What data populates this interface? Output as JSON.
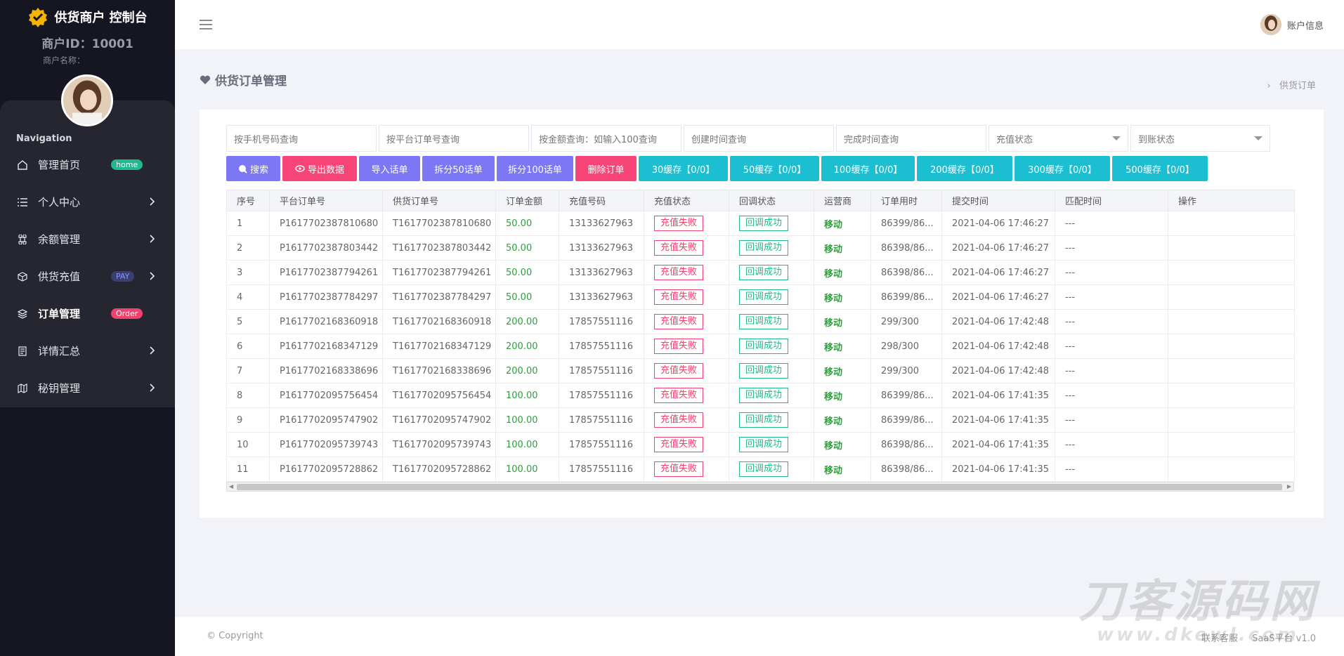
{
  "sidebar": {
    "brand_title": "供货商户 控制台",
    "merchant_id": "商户ID：10001",
    "merchant_name": "商户名称：",
    "nav_heading": "Navigation",
    "items": [
      {
        "label": "管理首页",
        "icon": "home-icon",
        "badge": "home"
      },
      {
        "label": "个人中心",
        "icon": "list-icon"
      },
      {
        "label": "余额管理",
        "icon": "command-icon"
      },
      {
        "label": "供货充值",
        "icon": "box-icon",
        "badge": "PAY"
      },
      {
        "label": "订单管理",
        "icon": "layers-icon",
        "badge": "Order"
      },
      {
        "label": "详情汇总",
        "icon": "file-icon"
      },
      {
        "label": "秘钥管理",
        "icon": "map-icon"
      }
    ]
  },
  "header": {
    "account_label": "账户信息"
  },
  "page": {
    "title": "供货订单管理",
    "breadcrumb": "供货订单"
  },
  "filters": {
    "phone_placeholder": "按手机号码查询",
    "platform_order_placeholder": "按平台订单号查询",
    "amount_placeholder": "按金额查询：如输入100查询",
    "created_placeholder": "创建时间查询",
    "finished_placeholder": "完成时间查询",
    "recharge_status": "充值状态",
    "arrival_status": "到账状态"
  },
  "buttons": {
    "search": "搜索",
    "export": "导出数据",
    "import": "导入话单",
    "split50": "拆分50话单",
    "split100": "拆分100话单",
    "delete": "删除订单",
    "cache": [
      "30缓存【0/0】",
      "50缓存【0/0】",
      "100缓存【0/0】",
      "200缓存【0/0】",
      "300缓存【0/0】",
      "500缓存【0/0】"
    ]
  },
  "table": {
    "headers": [
      "序号",
      "平台订单号",
      "供货订单号",
      "订单金额",
      "充值号码",
      "充值状态",
      "回调状态",
      "运营商",
      "订单用时",
      "提交时间",
      "匹配时间",
      "操作"
    ],
    "rows": [
      [
        "1",
        "P1617702387810680",
        "T1617702387810680",
        "50.00",
        "13133627963",
        "充值失败",
        "回调成功",
        "移动",
        "86399/86...",
        "2021-04-06 17:46:27",
        "---",
        ""
      ],
      [
        "2",
        "P1617702387803442",
        "T1617702387803442",
        "50.00",
        "13133627963",
        "充值失败",
        "回调成功",
        "移动",
        "86398/86...",
        "2021-04-06 17:46:27",
        "---",
        ""
      ],
      [
        "3",
        "P1617702387794261",
        "T1617702387794261",
        "50.00",
        "13133627963",
        "充值失败",
        "回调成功",
        "移动",
        "86398/86...",
        "2021-04-06 17:46:27",
        "---",
        ""
      ],
      [
        "4",
        "P1617702387784297",
        "T1617702387784297",
        "50.00",
        "13133627963",
        "充值失败",
        "回调成功",
        "移动",
        "86399/86...",
        "2021-04-06 17:46:27",
        "---",
        ""
      ],
      [
        "5",
        "P1617702168360918",
        "T1617702168360918",
        "200.00",
        "17857551116",
        "充值失败",
        "回调成功",
        "移动",
        "299/300",
        "2021-04-06 17:42:48",
        "---",
        ""
      ],
      [
        "6",
        "P1617702168347129",
        "T1617702168347129",
        "200.00",
        "17857551116",
        "充值失败",
        "回调成功",
        "移动",
        "298/300",
        "2021-04-06 17:42:48",
        "---",
        ""
      ],
      [
        "7",
        "P1617702168338696",
        "T1617702168338696",
        "200.00",
        "17857551116",
        "充值失败",
        "回调成功",
        "移动",
        "299/300",
        "2021-04-06 17:42:48",
        "---",
        ""
      ],
      [
        "8",
        "P1617702095756454",
        "T1617702095756454",
        "100.00",
        "17857551116",
        "充值失败",
        "回调成功",
        "移动",
        "86399/86...",
        "2021-04-06 17:41:35",
        "---",
        ""
      ],
      [
        "9",
        "P1617702095747902",
        "T1617702095747902",
        "100.00",
        "17857551116",
        "充值失败",
        "回调成功",
        "移动",
        "86399/86...",
        "2021-04-06 17:41:35",
        "---",
        ""
      ],
      [
        "10",
        "P1617702095739743",
        "T1617702095739743",
        "100.00",
        "17857551116",
        "充值失败",
        "回调成功",
        "移动",
        "86398/86...",
        "2021-04-06 17:41:35",
        "---",
        ""
      ],
      [
        "11",
        "P1617702095728862",
        "T1617702095728862",
        "100.00",
        "17857551116",
        "充值失败",
        "回调成功",
        "移动",
        "86398/86...",
        "2021-04-06 17:41:35",
        "---",
        ""
      ]
    ]
  },
  "footer": {
    "copyright": "© Copyright",
    "links": [
      "联系客服",
      "SaaS平台 v1.0"
    ]
  },
  "watermark": {
    "line1": "刀客源码网",
    "line2": "www.dkewl.com"
  },
  "colors": {
    "sidebar_bg": "#161622",
    "brand_logo": "#f5b400",
    "accent_purple": "#7b77f5",
    "accent_pink": "#f84578",
    "accent_cyan": "#1bbfd1",
    "success": "#1dbb8c",
    "danger": "#f1416c"
  }
}
